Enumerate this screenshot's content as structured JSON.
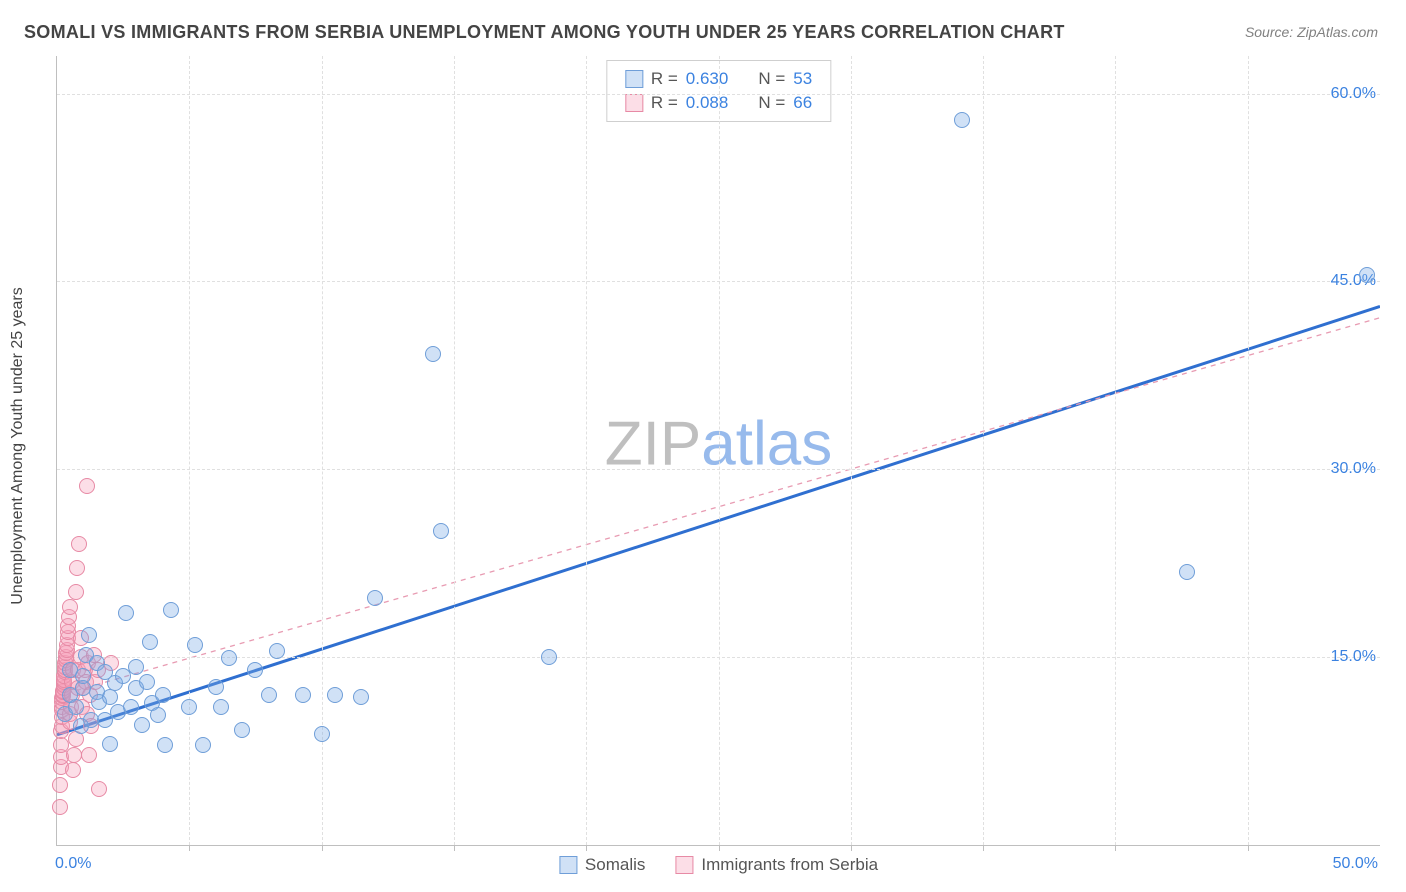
{
  "title": "SOMALI VS IMMIGRANTS FROM SERBIA UNEMPLOYMENT AMONG YOUTH UNDER 25 YEARS CORRELATION CHART",
  "source": "Source: ZipAtlas.com",
  "y_axis_label": "Unemployment Among Youth under 25 years",
  "watermark_a": "ZIP",
  "watermark_b": "atlas",
  "chart": {
    "type": "scatter",
    "xlim": [
      0,
      50
    ],
    "ylim": [
      0,
      63
    ],
    "x_ticks_major": [
      0,
      50
    ],
    "x_ticks_minor": [
      5,
      10,
      15,
      20,
      25,
      30,
      35,
      40,
      45
    ],
    "y_ticks": [
      15,
      30,
      45,
      60
    ],
    "x_tick_labels": {
      "0": "0.0%",
      "50": "50.0%"
    },
    "y_tick_labels": {
      "15": "15.0%",
      "30": "30.0%",
      "45": "45.0%",
      "60": "60.0%"
    },
    "background_color": "#ffffff",
    "grid_color": "#e0e0e0",
    "border_color": "#bfbfbf",
    "axis_label_color": "#3b82e0",
    "title_color": "#444444",
    "source_color": "#808080",
    "marker_radius": 8,
    "marker_border_width": 1.2,
    "series": [
      {
        "key": "somalis",
        "name": "Somalis",
        "fill": "rgba(120,170,230,0.35)",
        "stroke": "#6f9ed8",
        "trend_stroke": "#2f6fd0",
        "trend_width": 3,
        "trend_dash": "none",
        "trend_line": {
          "x1": 0,
          "y1": 8.8,
          "x2": 50,
          "y2": 43.0
        },
        "points": [
          [
            0.3,
            10.5
          ],
          [
            0.5,
            12.0
          ],
          [
            0.5,
            14.0
          ],
          [
            0.7,
            11.0
          ],
          [
            0.9,
            9.5
          ],
          [
            1.0,
            12.5
          ],
          [
            1.0,
            13.5
          ],
          [
            1.1,
            15.2
          ],
          [
            1.2,
            16.8
          ],
          [
            1.3,
            10.0
          ],
          [
            1.5,
            12.2
          ],
          [
            1.5,
            14.5
          ],
          [
            1.6,
            11.4
          ],
          [
            1.8,
            10.0
          ],
          [
            1.8,
            13.8
          ],
          [
            2.0,
            8.1
          ],
          [
            2.0,
            11.8
          ],
          [
            2.2,
            12.9
          ],
          [
            2.3,
            10.6
          ],
          [
            2.5,
            13.5
          ],
          [
            2.6,
            18.5
          ],
          [
            2.8,
            11.0
          ],
          [
            3.0,
            12.5
          ],
          [
            3.0,
            14.2
          ],
          [
            3.2,
            9.6
          ],
          [
            3.4,
            13.0
          ],
          [
            3.5,
            16.2
          ],
          [
            3.6,
            11.3
          ],
          [
            3.8,
            10.4
          ],
          [
            4.0,
            12.0
          ],
          [
            4.1,
            8.0
          ],
          [
            4.3,
            18.8
          ],
          [
            5.0,
            11.0
          ],
          [
            5.2,
            16.0
          ],
          [
            5.5,
            8.0
          ],
          [
            6.0,
            12.6
          ],
          [
            6.2,
            11.0
          ],
          [
            6.5,
            14.9
          ],
          [
            7.0,
            9.2
          ],
          [
            7.5,
            14.0
          ],
          [
            8.0,
            12.0
          ],
          [
            8.3,
            15.5
          ],
          [
            9.3,
            12.0
          ],
          [
            10.0,
            8.9
          ],
          [
            10.5,
            12.0
          ],
          [
            11.5,
            11.8
          ],
          [
            12.0,
            19.7
          ],
          [
            14.2,
            39.2
          ],
          [
            14.5,
            25.1
          ],
          [
            18.6,
            15.0
          ],
          [
            34.2,
            57.9
          ],
          [
            42.7,
            21.8
          ],
          [
            49.5,
            45.5
          ]
        ]
      },
      {
        "key": "serbia",
        "name": "Immigrants from Serbia",
        "fill": "rgba(245,160,185,0.35)",
        "stroke": "#e78aa5",
        "trend_stroke": "#e89bb2",
        "trend_width": 1.3,
        "trend_dash": "5,5",
        "trend_line": {
          "x1": 0,
          "y1": 11.9,
          "x2": 50,
          "y2": 42.1
        },
        "points": [
          [
            0.1,
            3.0
          ],
          [
            0.12,
            4.8
          ],
          [
            0.14,
            6.2
          ],
          [
            0.15,
            7.0
          ],
          [
            0.15,
            8.0
          ],
          [
            0.16,
            9.1
          ],
          [
            0.18,
            9.5
          ],
          [
            0.18,
            10.2
          ],
          [
            0.19,
            10.8
          ],
          [
            0.2,
            11.0
          ],
          [
            0.2,
            11.4
          ],
          [
            0.2,
            11.7
          ],
          [
            0.22,
            11.9
          ],
          [
            0.22,
            12.0
          ],
          [
            0.23,
            12.2
          ],
          [
            0.24,
            12.3
          ],
          [
            0.25,
            12.5
          ],
          [
            0.25,
            12.8
          ],
          [
            0.26,
            13.0
          ],
          [
            0.27,
            13.2
          ],
          [
            0.28,
            13.5
          ],
          [
            0.3,
            13.8
          ],
          [
            0.3,
            14.0
          ],
          [
            0.31,
            14.2
          ],
          [
            0.32,
            14.5
          ],
          [
            0.33,
            14.8
          ],
          [
            0.34,
            15.0
          ],
          [
            0.35,
            15.3
          ],
          [
            0.36,
            15.6
          ],
          [
            0.38,
            16.0
          ],
          [
            0.4,
            16.5
          ],
          [
            0.4,
            17.0
          ],
          [
            0.42,
            17.5
          ],
          [
            0.45,
            18.2
          ],
          [
            0.48,
            19.0
          ],
          [
            0.5,
            9.8
          ],
          [
            0.5,
            10.5
          ],
          [
            0.52,
            11.0
          ],
          [
            0.55,
            12.0
          ],
          [
            0.58,
            13.0
          ],
          [
            0.6,
            14.0
          ],
          [
            0.62,
            6.0
          ],
          [
            0.65,
            7.2
          ],
          [
            0.7,
            8.5
          ],
          [
            0.72,
            20.2
          ],
          [
            0.75,
            22.1
          ],
          [
            0.78,
            12.5
          ],
          [
            0.8,
            14.0
          ],
          [
            0.85,
            24.0
          ],
          [
            0.9,
            15.0
          ],
          [
            0.92,
            16.5
          ],
          [
            0.95,
            11.0
          ],
          [
            1.0,
            12.5
          ],
          [
            1.05,
            14.0
          ],
          [
            1.1,
            13.0
          ],
          [
            1.12,
            28.7
          ],
          [
            1.15,
            10.5
          ],
          [
            1.18,
            14.5
          ],
          [
            1.2,
            7.2
          ],
          [
            1.25,
            12.0
          ],
          [
            1.3,
            9.5
          ],
          [
            1.4,
            15.2
          ],
          [
            1.45,
            13.0
          ],
          [
            1.55,
            14.0
          ],
          [
            1.6,
            4.5
          ],
          [
            2.05,
            14.5
          ]
        ]
      }
    ]
  },
  "legend_corr": {
    "rows": [
      {
        "swatch_fill": "rgba(120,170,230,0.35)",
        "swatch_stroke": "#6f9ed8",
        "r_label": "R = ",
        "r_value": "0.630",
        "n_label": "N = ",
        "n_value": "53"
      },
      {
        "swatch_fill": "rgba(245,160,185,0.35)",
        "swatch_stroke": "#e78aa5",
        "r_label": "R = ",
        "r_value": "0.088",
        "n_label": "N = ",
        "n_value": "66"
      }
    ]
  },
  "legend_bottom": {
    "items": [
      {
        "swatch_fill": "rgba(120,170,230,0.35)",
        "swatch_stroke": "#6f9ed8",
        "label": "Somalis"
      },
      {
        "swatch_fill": "rgba(245,160,185,0.35)",
        "swatch_stroke": "#e78aa5",
        "label": "Immigrants from Serbia"
      }
    ]
  }
}
